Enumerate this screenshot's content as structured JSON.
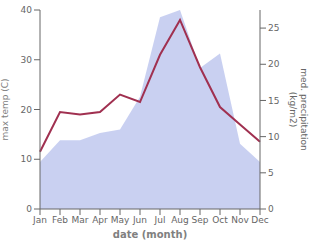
{
  "chart_data": {
    "type": "line",
    "xlabel": "date (month)",
    "ylabel": "max temp (C)",
    "y2label": "med. precipitation\n(kg/m2)",
    "categories": [
      "Jan",
      "Feb",
      "Mar",
      "Apr",
      "May",
      "Jun",
      "Jul",
      "Aug",
      "Sep",
      "Oct",
      "Nov",
      "Dec"
    ],
    "series": [
      {
        "type": "area",
        "axis": "y2",
        "color": "#c0c8ee",
        "values": [
          6.5,
          9.5,
          9.5,
          10.5,
          11.0,
          15.5,
          26.5,
          27.5,
          19.5,
          21.5,
          9.0,
          6.5
        ]
      },
      {
        "type": "line",
        "color": "#a03050",
        "values": [
          11.5,
          19.5,
          19.0,
          19.5,
          23.0,
          21.5,
          31.0,
          38.0,
          28.5,
          20.5,
          17.0,
          13.5
        ]
      }
    ],
    "ylim": [
      0,
      40
    ],
    "yticks": [
      0,
      10,
      20,
      30,
      40
    ],
    "y2lim": [
      0,
      27.5
    ],
    "y2ticks": [
      0,
      5,
      10,
      15,
      20,
      25
    ],
    "grid": false
  }
}
